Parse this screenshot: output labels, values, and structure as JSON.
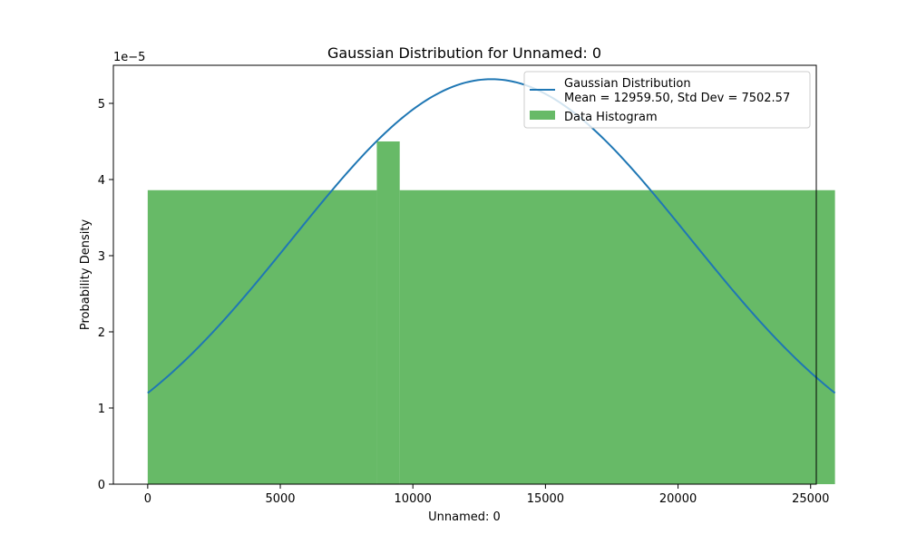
{
  "chart_data": {
    "type": "histogram",
    "title": "Gaussian Distribution for Unnamed: 0",
    "xlabel": "Unnamed: 0",
    "ylabel": "Probability Density",
    "y_offset_label": "1e−5",
    "y_scale": 1e-05,
    "xlim": [
      -1295,
      25214
    ],
    "ylim": [
      0,
      5.5
    ],
    "xticks": [
      0,
      5000,
      10000,
      15000,
      20000,
      25000
    ],
    "xtick_labels": [
      "0",
      "5000",
      "10000",
      "15000",
      "20000",
      "25000"
    ],
    "yticks": [
      0,
      1,
      2,
      3,
      4,
      5
    ],
    "ytick_labels": [
      "0",
      "1",
      "2",
      "3",
      "4",
      "5"
    ],
    "histogram": {
      "name": "Data Histogram",
      "color": "#2ca02c",
      "alpha": 0.72,
      "bins": [
        {
          "x0": 0,
          "x1": 8640,
          "density": 3.86
        },
        {
          "x0": 8640,
          "x1": 9504,
          "density": 4.5
        },
        {
          "x0": 9504,
          "x1": 25919,
          "density": 3.86
        }
      ]
    },
    "gaussian": {
      "name_line1": "Gaussian Distribution",
      "name_line2": "Mean = 12959.50, Std Dev = 7502.57",
      "mean": 12959.5,
      "std": 7502.57,
      "x_range": [
        0,
        25919
      ],
      "color": "#1f77b4"
    },
    "legend_position": "top-right"
  }
}
